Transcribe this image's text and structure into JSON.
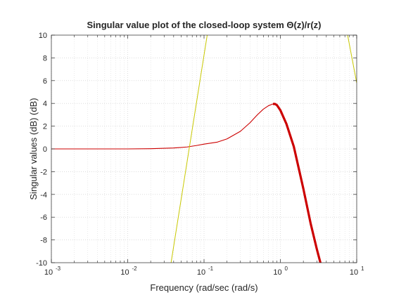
{
  "chart_data": {
    "type": "line",
    "title": "Singular value plot of the closed-loop system Θ(z)/r(z)",
    "xlabel": "Frequency (rad/sec (rad/s)",
    "ylabel": "Singular values (dB) (dB)",
    "xscale": "log",
    "xlim": [
      0.001,
      10
    ],
    "ylim": [
      -10,
      10
    ],
    "yticks": [
      -10,
      -8,
      -6,
      -4,
      -2,
      0,
      2,
      4,
      6,
      8,
      10
    ],
    "xticks": [
      {
        "base": "10",
        "exp": "-3"
      },
      {
        "base": "10",
        "exp": "-2"
      },
      {
        "base": "10",
        "exp": "-1"
      },
      {
        "base": "10",
        "exp": "0"
      },
      {
        "base": "10",
        "exp": "1"
      }
    ],
    "grid": true,
    "minor_grid": true,
    "series": [
      {
        "color": "#cc0000",
        "x": [
          0.001,
          0.003,
          0.01,
          0.02,
          0.04,
          0.06,
          0.08,
          0.1,
          0.15,
          0.2,
          0.3,
          0.4,
          0.5,
          0.6,
          0.7,
          0.8,
          0.85,
          0.9,
          1.0,
          1.2,
          1.5,
          2.0,
          2.5,
          3.0,
          3.5
        ],
        "y": [
          0,
          0,
          0,
          0.02,
          0.08,
          0.17,
          0.3,
          0.42,
          0.6,
          0.88,
          1.55,
          2.3,
          3.0,
          3.5,
          3.8,
          3.95,
          3.95,
          3.85,
          3.4,
          2.2,
          0.2,
          -3.5,
          -6.6,
          -8.8,
          -10.5
        ]
      },
      {
        "color": "#c8c800",
        "x": [
          0.037,
          0.11
        ],
        "y": [
          -10,
          10
        ]
      },
      {
        "color": "#c8c800",
        "x": [
          7.6,
          10
        ],
        "y": [
          10,
          5.8
        ]
      }
    ]
  }
}
